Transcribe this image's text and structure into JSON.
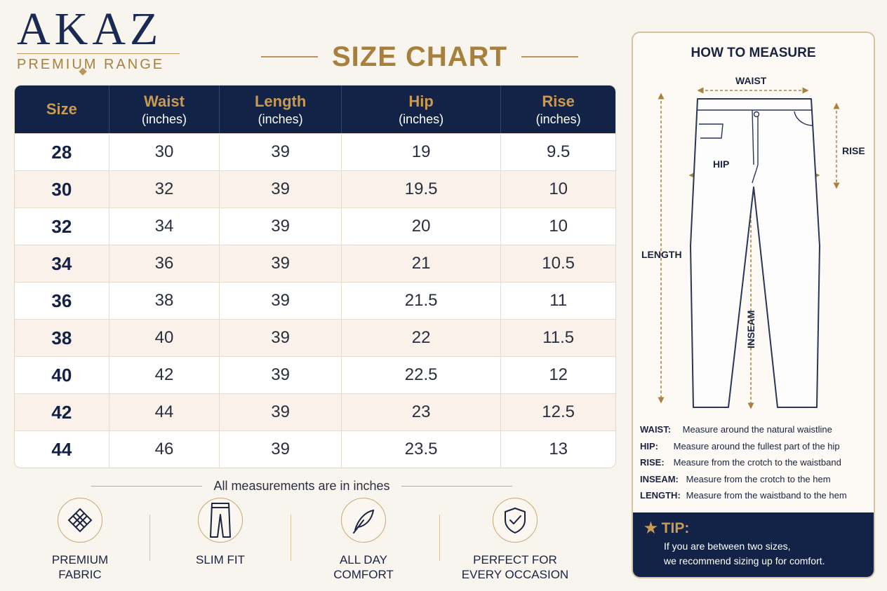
{
  "brand": {
    "name": "AKAZ",
    "tagline": "PREMIUM RANGE"
  },
  "title": "SIZE CHART",
  "table": {
    "headers": [
      {
        "main": "Size",
        "unit": ""
      },
      {
        "main": "Waist",
        "unit": "(inches)"
      },
      {
        "main": "Length",
        "unit": "(inches)"
      },
      {
        "main": "Hip",
        "unit": "(inches)"
      },
      {
        "main": "Rise",
        "unit": "(inches)"
      }
    ],
    "rows": [
      [
        "28",
        "30",
        "39",
        "19",
        "9.5"
      ],
      [
        "30",
        "32",
        "39",
        "19.5",
        "10"
      ],
      [
        "32",
        "34",
        "39",
        "20",
        "10"
      ],
      [
        "34",
        "36",
        "39",
        "21",
        "10.5"
      ],
      [
        "36",
        "38",
        "39",
        "21.5",
        "11"
      ],
      [
        "38",
        "40",
        "39",
        "22",
        "11.5"
      ],
      [
        "40",
        "42",
        "39",
        "22.5",
        "12"
      ],
      [
        "42",
        "44",
        "39",
        "23",
        "12.5"
      ],
      [
        "44",
        "46",
        "39",
        "23.5",
        "13"
      ]
    ]
  },
  "note": "All measurements are in inches",
  "features": [
    {
      "line1": "PREMIUM",
      "line2": "FABRIC",
      "icon": "fabric-weave-icon"
    },
    {
      "line1": "SLIM FIT",
      "line2": "",
      "icon": "jeans-icon"
    },
    {
      "line1": "ALL DAY",
      "line2": "COMFORT",
      "icon": "feather-icon"
    },
    {
      "line1": "PERFECT FOR",
      "line2": "EVERY OCCASION",
      "icon": "shield-check-icon"
    }
  ],
  "measure": {
    "title": "HOW TO MEASURE",
    "labels": {
      "waist": "WAIST",
      "rise": "RISE",
      "hip": "HIP",
      "length": "LENGTH",
      "inseam": "INSEAM"
    },
    "definitions": [
      {
        "term": "WAIST:",
        "text": "Measure around the natural waistline"
      },
      {
        "term": "HIP:",
        "text": "Measure around the fullest part of the hip"
      },
      {
        "term": "RISE:",
        "text": "Measure from the crotch to the waistband"
      },
      {
        "term": "INSEAM:",
        "text": "Measure from the crotch to the hem"
      },
      {
        "term": "LENGTH:",
        "text": "Measure from the waistband to the hem"
      }
    ]
  },
  "tip": {
    "heading": "TIP:",
    "line1": "If you are between two sizes,",
    "line2": "we recommend sizing up for comfort."
  },
  "colors": {
    "navy": "#132347",
    "gold": "#b8955a",
    "background": "#f8f4ee"
  }
}
